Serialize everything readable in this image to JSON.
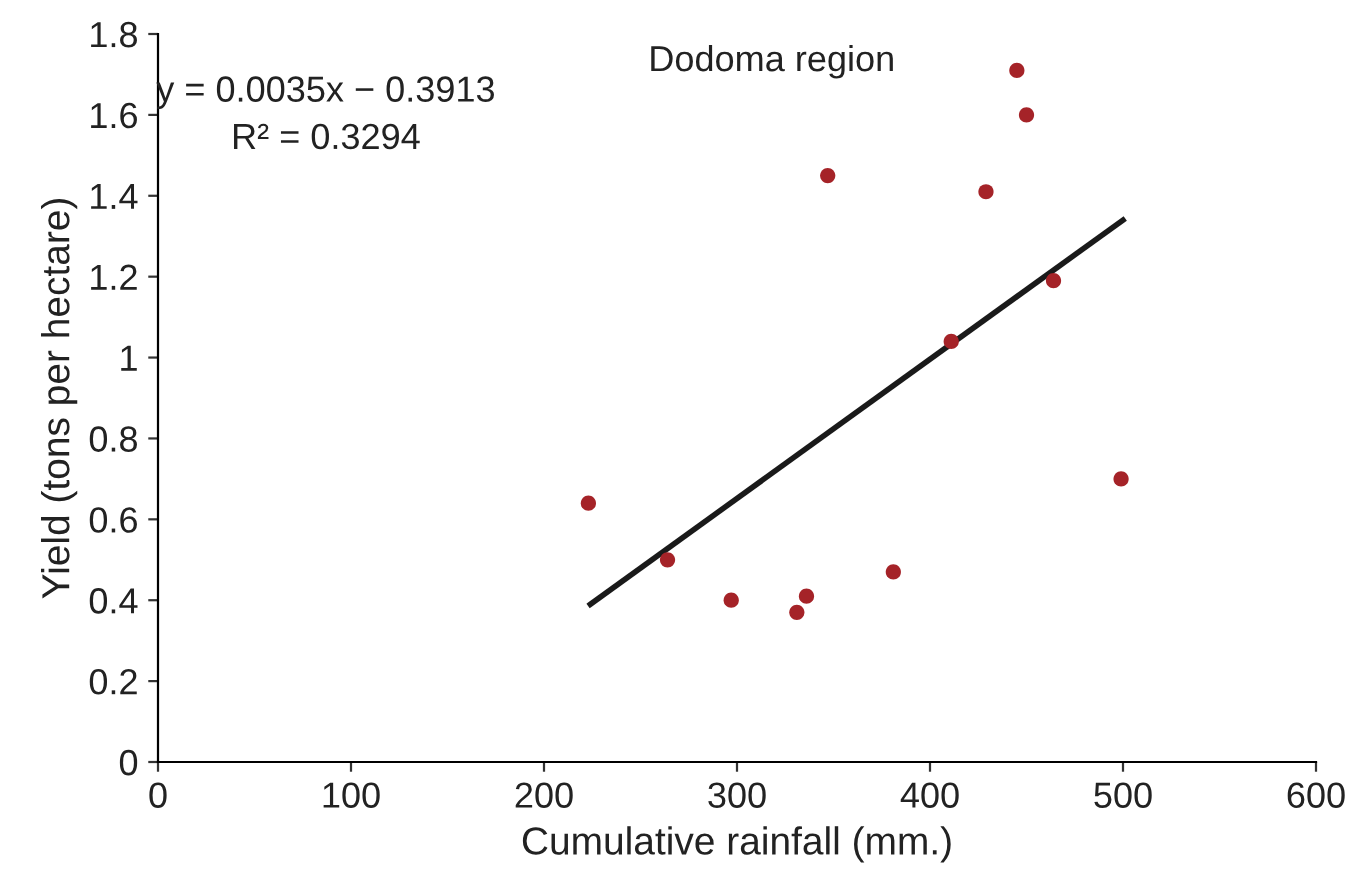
{
  "chart_data": {
    "type": "scatter",
    "title": "Dodoma region",
    "xlabel": "Cumulative rainfall (mm.)",
    "ylabel": "Yield (tons per hectare)",
    "annotations": [
      "y = 0.0035x − 0.3913",
      "R² = 0.3294"
    ],
    "series": [
      {
        "color": "#a52328",
        "marker": "circle",
        "x": [
          223,
          264,
          297,
          331,
          336,
          347,
          381,
          411,
          429,
          445,
          450,
          464,
          499
        ],
        "values": [
          0.64,
          0.5,
          0.4,
          0.37,
          0.41,
          1.45,
          0.47,
          1.04,
          1.41,
          1.71,
          1.6,
          1.19,
          0.7
        ]
      },
      {
        "type": "line",
        "color": "#1a1a1a",
        "x": [
          224,
          500
        ],
        "values": [
          0.39,
          1.34
        ]
      }
    ],
    "xlim": [
      0,
      600
    ],
    "xticks": [
      0,
      100,
      200,
      300,
      400,
      500,
      600
    ],
    "ylim": [
      0,
      1.8
    ],
    "yticks": [
      0,
      0.2,
      0.4,
      0.6,
      0.8,
      1,
      1.2,
      1.4,
      1.6,
      1.8
    ],
    "grid": false,
    "legend": false
  }
}
